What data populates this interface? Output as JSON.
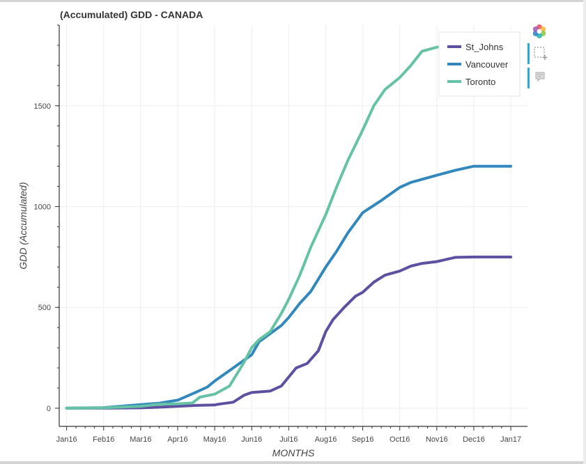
{
  "chart_data": {
    "type": "line",
    "title": "(Accumulated) GDD - CANADA",
    "xlabel": "MONTHS",
    "ylabel": "GDD (Accumulated)",
    "ylim": [
      -90,
      1900
    ],
    "yticks": [
      0,
      500,
      1000,
      1500
    ],
    "x_tick_labels": [
      "Jan16",
      "Feb16",
      "Mar16",
      "Apr16",
      "May16",
      "Jun16",
      "Jul16",
      "Aug16",
      "Sep16",
      "Oct16",
      "Nov16",
      "Dec16",
      "Jan17"
    ],
    "xlim": [
      -0.2,
      12.45
    ],
    "grid": true,
    "legend_position": "top-right",
    "series": [
      {
        "name": "St_Johns",
        "color": "#5e50a1",
        "x": [
          0,
          1,
          2,
          2.5,
          3,
          3.5,
          4,
          4.1,
          4.5,
          4.8,
          5,
          5.5,
          5.8,
          6,
          6.2,
          6.5,
          6.8,
          7,
          7.2,
          7.5,
          7.8,
          8,
          8.3,
          8.6,
          9,
          9.3,
          9.6,
          10,
          10.5,
          11,
          11.5,
          12
        ],
        "y": [
          0,
          0,
          2,
          5,
          10,
          14,
          16,
          20,
          30,
          65,
          78,
          85,
          110,
          155,
          200,
          222,
          285,
          380,
          440,
          500,
          555,
          575,
          625,
          660,
          680,
          705,
          718,
          727,
          748,
          750,
          750,
          750
        ]
      },
      {
        "name": "Vancouver",
        "color": "#3288bd",
        "x": [
          0,
          1,
          2,
          2.5,
          3,
          3.5,
          3.8,
          4,
          4.5,
          5,
          5.2,
          5.5,
          5.8,
          6,
          6.3,
          6.6,
          7,
          7.3,
          7.6,
          8,
          8.5,
          9,
          9.3,
          9.6,
          10,
          10.5,
          11,
          11.2,
          11.5,
          12
        ],
        "y": [
          0,
          3,
          18,
          25,
          40,
          80,
          105,
          135,
          200,
          265,
          330,
          370,
          410,
          450,
          520,
          580,
          700,
          780,
          870,
          970,
          1030,
          1095,
          1120,
          1135,
          1155,
          1180,
          1200,
          1200,
          1200,
          1200
        ]
      },
      {
        "name": "Toronto",
        "color": "#66c2a5",
        "x": [
          0,
          1,
          2,
          2.5,
          3,
          3.4,
          3.6,
          4,
          4.4,
          4.8,
          5,
          5.2,
          5.5,
          5.8,
          6,
          6.3,
          6.6,
          7,
          7.3,
          7.6,
          8,
          8.3,
          8.6,
          9,
          9.3,
          9.6,
          10,
          10.3
        ],
        "y": [
          0,
          2,
          10,
          20,
          22,
          26,
          55,
          70,
          110,
          230,
          300,
          340,
          380,
          470,
          540,
          660,
          800,
          960,
          1100,
          1230,
          1380,
          1500,
          1580,
          1640,
          1700,
          1770,
          1790,
          1800
        ]
      }
    ]
  },
  "toolbar": {
    "logo_icon": "bokeh-logo-icon",
    "box_zoom_icon": "box-zoom-icon",
    "hover_icon": "hover-tooltip-icon"
  }
}
